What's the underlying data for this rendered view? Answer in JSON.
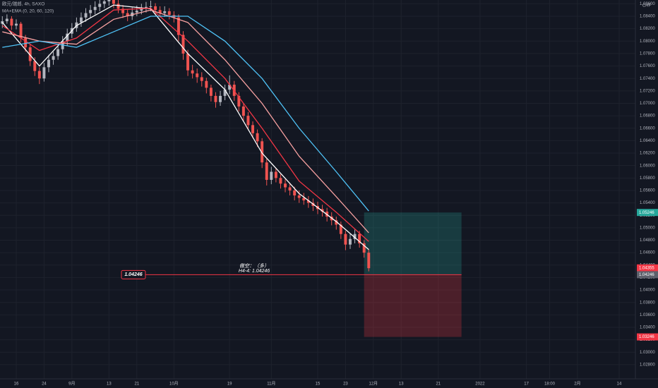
{
  "chart_data": {
    "type": "candlestick",
    "symbol": "欧元/瑞郎, 4h, SAXO",
    "indicator": "MA+EMA (0, 20, 60, 120)",
    "currency": "CHF",
    "up_color": "#b2b5be",
    "down_color": "#ef5350",
    "xlim": [
      -0.5,
      136.5
    ],
    "ylim": [
      1.02572,
      1.08661
    ],
    "xticks": [
      {
        "value": 3,
        "label": "16"
      },
      {
        "value": 9,
        "label": "24"
      },
      {
        "value": 15,
        "label": "9月"
      },
      {
        "value": 23,
        "label": "13"
      },
      {
        "value": 29,
        "label": "21"
      },
      {
        "value": 37,
        "label": "10月"
      },
      {
        "value": 49,
        "label": "19"
      },
      {
        "value": 58,
        "label": "11月"
      },
      {
        "value": 68,
        "label": "15"
      },
      {
        "value": 74,
        "label": "23"
      },
      {
        "value": 80,
        "label": "12月"
      },
      {
        "value": 86,
        "label": "13"
      },
      {
        "value": 94,
        "label": "21"
      },
      {
        "value": 103,
        "label": "2022"
      },
      {
        "value": 113,
        "label": "17"
      },
      {
        "value": 118,
        "label": "18:00"
      },
      {
        "value": 124,
        "label": "2月"
      },
      {
        "value": 133,
        "label": "14"
      }
    ],
    "yticks": [
      {
        "value": 1.028,
        "label": "1.02800"
      },
      {
        "value": 1.03,
        "label": "1.03000"
      },
      {
        "value": 1.032,
        "label": "1.03200"
      },
      {
        "value": 1.034,
        "label": "1.03400"
      },
      {
        "value": 1.036,
        "label": "1.03600"
      },
      {
        "value": 1.038,
        "label": "1.03800"
      },
      {
        "value": 1.04,
        "label": "1.04000"
      },
      {
        "value": 1.042,
        "label": "1.04200"
      },
      {
        "value": 1.044,
        "label": "1.04400"
      },
      {
        "value": 1.046,
        "label": "1.04600"
      },
      {
        "value": 1.048,
        "label": "1.04800"
      },
      {
        "value": 1.05,
        "label": "1.05000"
      },
      {
        "value": 1.052,
        "label": "1.05200"
      },
      {
        "value": 1.054,
        "label": "1.05400"
      },
      {
        "value": 1.056,
        "label": "1.05600"
      },
      {
        "value": 1.058,
        "label": "1.05800"
      },
      {
        "value": 1.06,
        "label": "1.06000"
      },
      {
        "value": 1.062,
        "label": "1.06200"
      },
      {
        "value": 1.064,
        "label": "1.06400"
      },
      {
        "value": 1.066,
        "label": "1.06600"
      },
      {
        "value": 1.068,
        "label": "1.06800"
      },
      {
        "value": 1.07,
        "label": "1.07000"
      },
      {
        "value": 1.072,
        "label": "1.07200"
      },
      {
        "value": 1.074,
        "label": "1.07400"
      },
      {
        "value": 1.076,
        "label": "1.07600"
      },
      {
        "value": 1.078,
        "label": "1.07800"
      },
      {
        "value": 1.08,
        "label": "1.08000"
      },
      {
        "value": 1.082,
        "label": "1.08200"
      },
      {
        "value": 1.084,
        "label": "1.08400"
      },
      {
        "value": 1.086,
        "label": "1.08600"
      }
    ],
    "grid": true,
    "candles": [
      [
        1.0828,
        1.084,
        1.0821,
        1.0832
      ],
      [
        1.0832,
        1.0843,
        1.0828,
        1.0836
      ],
      [
        1.0836,
        1.084,
        1.0818,
        1.0825
      ],
      [
        1.0825,
        1.0835,
        1.0819,
        1.0828
      ],
      [
        1.0828,
        1.0831,
        1.0798,
        1.0805
      ],
      [
        1.0805,
        1.081,
        1.0783,
        1.079
      ],
      [
        1.079,
        1.0795,
        1.076,
        1.0768
      ],
      [
        1.0768,
        1.0774,
        1.0744,
        1.0752
      ],
      [
        1.0752,
        1.0758,
        1.0731,
        1.074
      ],
      [
        1.074,
        1.0765,
        1.0735,
        1.0758
      ],
      [
        1.0758,
        1.0778,
        1.075,
        1.077
      ],
      [
        1.077,
        1.0783,
        1.0762,
        1.0776
      ],
      [
        1.0776,
        1.0795,
        1.077,
        1.0787
      ],
      [
        1.0787,
        1.0808,
        1.078,
        1.08
      ],
      [
        1.08,
        1.082,
        1.0793,
        1.0812
      ],
      [
        1.0812,
        1.0829,
        1.0805,
        1.0821
      ],
      [
        1.0821,
        1.0838,
        1.0815,
        1.083
      ],
      [
        1.083,
        1.0846,
        1.0823,
        1.0838
      ],
      [
        1.0838,
        1.0853,
        1.0831,
        1.0845
      ],
      [
        1.0845,
        1.0858,
        1.0838,
        1.085
      ],
      [
        1.085,
        1.0864,
        1.0843,
        1.0855
      ],
      [
        1.0855,
        1.087,
        1.0848,
        1.086
      ],
      [
        1.086,
        1.0873,
        1.0853,
        1.0864
      ],
      [
        1.0864,
        1.0878,
        1.0857,
        1.0868
      ],
      [
        1.0868,
        1.0874,
        1.0853,
        1.086
      ],
      [
        1.086,
        1.0866,
        1.0845,
        1.0852
      ],
      [
        1.0852,
        1.0858,
        1.0837,
        1.0845
      ],
      [
        1.0845,
        1.0851,
        1.0832,
        1.084
      ],
      [
        1.084,
        1.0854,
        1.0834,
        1.0846
      ],
      [
        1.0846,
        1.0857,
        1.084,
        1.0849
      ],
      [
        1.0849,
        1.086,
        1.0843,
        1.0852
      ],
      [
        1.0852,
        1.0863,
        1.0846,
        1.0855
      ],
      [
        1.0855,
        1.0865,
        1.0848,
        1.0856
      ],
      [
        1.0856,
        1.0861,
        1.0842,
        1.085
      ],
      [
        1.085,
        1.0856,
        1.0838,
        1.0845
      ],
      [
        1.0845,
        1.0856,
        1.0839,
        1.0848
      ],
      [
        1.0848,
        1.0853,
        1.0835,
        1.0842
      ],
      [
        1.0842,
        1.0848,
        1.083,
        1.0838
      ],
      [
        1.0838,
        1.0843,
        1.08,
        1.081
      ],
      [
        1.081,
        1.0816,
        1.077,
        1.078
      ],
      [
        1.078,
        1.0786,
        1.0744,
        1.0753
      ],
      [
        1.0753,
        1.0762,
        1.074,
        1.0748
      ],
      [
        1.0748,
        1.0756,
        1.0733,
        1.0742
      ],
      [
        1.0742,
        1.075,
        1.0727,
        1.0736
      ],
      [
        1.0736,
        1.0741,
        1.0716,
        1.0725
      ],
      [
        1.0725,
        1.073,
        1.0703,
        1.0712
      ],
      [
        1.0712,
        1.0718,
        1.0693,
        1.0702
      ],
      [
        1.0702,
        1.072,
        1.0696,
        1.0712
      ],
      [
        1.0712,
        1.073,
        1.0705,
        1.0722
      ],
      [
        1.0722,
        1.0745,
        1.0715,
        1.073
      ],
      [
        1.073,
        1.0736,
        1.0704,
        1.0712
      ],
      [
        1.0712,
        1.0718,
        1.0687,
        1.0695
      ],
      [
        1.0695,
        1.07,
        1.0672,
        1.068
      ],
      [
        1.068,
        1.0686,
        1.0657,
        1.0665
      ],
      [
        1.0665,
        1.0671,
        1.0644,
        1.0652
      ],
      [
        1.0652,
        1.0658,
        1.063,
        1.0639
      ],
      [
        1.0639,
        1.0644,
        1.0596,
        1.0605
      ],
      [
        1.0605,
        1.0611,
        1.0568,
        1.0577
      ],
      [
        1.0577,
        1.0598,
        1.057,
        1.059
      ],
      [
        1.059,
        1.0596,
        1.0573,
        1.058
      ],
      [
        1.058,
        1.0586,
        1.0563,
        1.0571
      ],
      [
        1.0571,
        1.0578,
        1.0557,
        1.0565
      ],
      [
        1.0565,
        1.0572,
        1.0552,
        1.056
      ],
      [
        1.056,
        1.0566,
        1.0544,
        1.0552
      ],
      [
        1.0552,
        1.056,
        1.054,
        1.0548
      ],
      [
        1.0548,
        1.0556,
        1.0537,
        1.0544
      ],
      [
        1.0544,
        1.0551,
        1.0532,
        1.054
      ],
      [
        1.054,
        1.0547,
        1.0527,
        1.0535
      ],
      [
        1.0535,
        1.0542,
        1.0522,
        1.053
      ],
      [
        1.053,
        1.0537,
        1.0518,
        1.0526
      ],
      [
        1.0526,
        1.0532,
        1.051,
        1.0518
      ],
      [
        1.0518,
        1.0525,
        1.0504,
        1.0512
      ],
      [
        1.0512,
        1.0518,
        1.0497,
        1.0505
      ],
      [
        1.0505,
        1.051,
        1.0482,
        1.049
      ],
      [
        1.049,
        1.0495,
        1.0464,
        1.0473
      ],
      [
        1.0473,
        1.049,
        1.0466,
        1.0482
      ],
      [
        1.0482,
        1.0497,
        1.0475,
        1.049
      ],
      [
        1.049,
        1.0495,
        1.0468,
        1.0475
      ],
      [
        1.0475,
        1.048,
        1.0452,
        1.046
      ],
      [
        1.046,
        1.0466,
        1.043,
        1.0435
      ]
    ],
    "lines": {
      "x": [
        0,
        8,
        16,
        24,
        32,
        40,
        48,
        56,
        64,
        72,
        79
      ],
      "series": [
        {
          "color": "#ffffff",
          "values": [
            1.083,
            1.076,
            1.0825,
            1.0858,
            1.0852,
            1.078,
            1.0722,
            1.062,
            1.0555,
            1.051,
            1.0465
          ]
        },
        {
          "color": "#f23645",
          "values": [
            1.0825,
            1.0785,
            1.0805,
            1.085,
            1.0853,
            1.08,
            1.074,
            1.066,
            1.0575,
            1.0525,
            1.0478
          ]
        },
        {
          "color": "#f7a1a1",
          "values": [
            1.0815,
            1.08,
            1.0795,
            1.0835,
            1.085,
            1.083,
            1.077,
            1.07,
            1.0615,
            1.055,
            1.0492
          ]
        },
        {
          "color": "#4fc3f7",
          "values": [
            1.079,
            1.08,
            1.079,
            1.0815,
            1.084,
            1.084,
            1.08,
            1.074,
            1.066,
            1.059,
            1.0527
          ]
        }
      ]
    },
    "position": {
      "start": 78,
      "end": 99,
      "target": 1.05246,
      "entry": 1.04246,
      "stop": 1.03246,
      "title": "做空：（多）",
      "subtitle": "H4-4: 1.04246",
      "entry_label": "1.04246"
    },
    "price_labels": [
      {
        "value": 1.05246,
        "label": "1.05246",
        "color": "#26a69a"
      },
      {
        "value": 1.04355,
        "label": "1.04355",
        "color": "#f23645"
      },
      {
        "value": 1.04246,
        "label": "1.04246",
        "color": "#5d606b"
      },
      {
        "value": 1.03246,
        "label": "1.03246",
        "color": "#f23645"
      }
    ]
  }
}
